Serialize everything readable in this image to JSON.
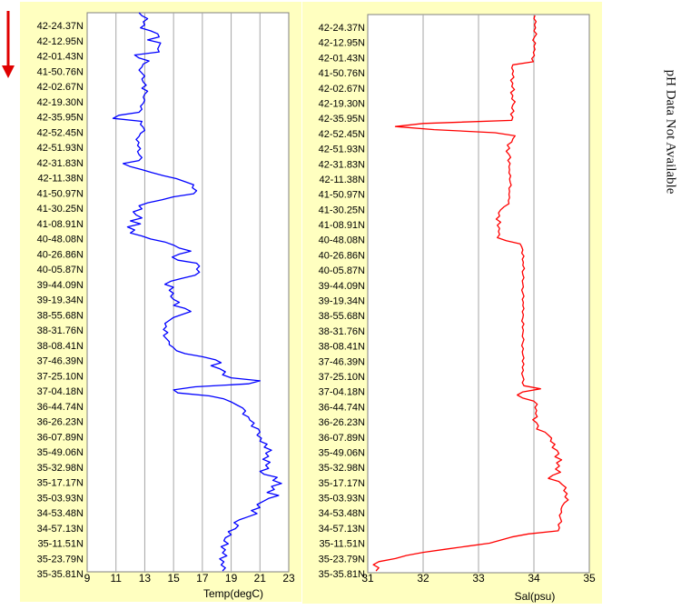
{
  "direction_arrow_icon": "arrow-down-icon",
  "side_note": "pH Data Not Available",
  "colors": {
    "panel_bg": "#FFFFC0",
    "plot_bg": "#FFFFFF",
    "temp_line": "#0000FF",
    "sal_line": "#FF0000",
    "arrow": "#E00000",
    "grid": "#A6A6A6"
  },
  "latitude_labels": [
    "42-24.37N",
    "42-12.95N",
    "42-01.43N",
    "41-50.76N",
    "42-02.67N",
    "42-19.30N",
    "42-35.95N",
    "42-52.45N",
    "42-51.93N",
    "42-31.83N",
    "42-11.38N",
    "41-50.97N",
    "41-30.25N",
    "41-08.91N",
    "40-48.08N",
    "40-26.86N",
    "40-05.87N",
    "39-44.09N",
    "39-19.34N",
    "38-55.68N",
    "38-31.76N",
    "38-08.41N",
    "37-46.39N",
    "37-25.10N",
    "37-04.18N",
    "36-44.74N",
    "36-26.23N",
    "36-07.89N",
    "35-49.06N",
    "35-32.98N",
    "35-17.17N",
    "35-03.93N",
    "34-53.48N",
    "34-57.13N",
    "35-11.51N",
    "35-23.79N",
    "35-35.81N"
  ],
  "chart_data": [
    {
      "type": "line",
      "orientation": "vertical-profile",
      "xlabel": "Temp(degC)",
      "xlim": [
        9,
        23
      ],
      "x_ticks": [
        9,
        11,
        13,
        15,
        17,
        19,
        21,
        23
      ],
      "grid": true,
      "series": [
        {
          "values": [
            12.6,
            12.8,
            13.2,
            12.9,
            13.0,
            12.7,
            13.4,
            13.9,
            14.0,
            13.2,
            14.1,
            14.0,
            13.9,
            14.0,
            12.3,
            12.6,
            13.3,
            12.9,
            12.8,
            12.6,
            12.8,
            13.0,
            12.8,
            12.9,
            13.1,
            12.8,
            13.2,
            13.0,
            12.9,
            13.0,
            12.9,
            12.7,
            12.8,
            12.6,
            11.2,
            10.8,
            12.8,
            12.7,
            12.9,
            13.0,
            12.7,
            12.6,
            12.4,
            12.6,
            12.5,
            12.7,
            12.5,
            12.6,
            12.8,
            12.6,
            11.5,
            12.0,
            12.8,
            13.5,
            14.3,
            15.2,
            15.8,
            16.4,
            16.3,
            16.6,
            16.4,
            15.0,
            14.2,
            13.2,
            12.6,
            12.8,
            12.2,
            12.4,
            12.8,
            12.0,
            12.7,
            11.8,
            12.3,
            12.0,
            12.8,
            13.4,
            14.4,
            15.0,
            15.4,
            16.2,
            15.4,
            14.9,
            15.3,
            16.6,
            16.8,
            16.6,
            16.8,
            16.5,
            15.6,
            14.8,
            14.4,
            15.0,
            14.7,
            15.0,
            14.8,
            15.0,
            15.4,
            15.0,
            15.8,
            16.2,
            15.6,
            15.0,
            14.7,
            14.4,
            14.5,
            14.3,
            14.6,
            14.3,
            14.5,
            14.7,
            14.7,
            15.0,
            15.2,
            15.8,
            17.0,
            17.9,
            18.3,
            17.6,
            18.2,
            18.6,
            18.4,
            19.0,
            21.0,
            20.2,
            16.5,
            15.0,
            15.3,
            17.5,
            18.5,
            19.0,
            19.4,
            19.8,
            20.0,
            19.8,
            20.2,
            20.3,
            20.6,
            20.4,
            20.9,
            21.0,
            20.8,
            21.1,
            21.0,
            21.5,
            21.3,
            21.8,
            21.4,
            21.6,
            21.2,
            21.7,
            21.4,
            21.6,
            21.0,
            21.3,
            22.2,
            21.9,
            22.5,
            21.8,
            22.0,
            21.5,
            22.3,
            21.6,
            21.2,
            20.8,
            21.0,
            20.4,
            20.8,
            20.2,
            19.6,
            19.2,
            19.5,
            19.3,
            18.8,
            19.0,
            18.6,
            18.5,
            18.8,
            18.3,
            18.6,
            18.4,
            18.7,
            18.2,
            18.5,
            18.3,
            18.6,
            18.4
          ]
        }
      ]
    },
    {
      "type": "line",
      "orientation": "vertical-profile",
      "xlabel": "Sal(psu)",
      "xlim": [
        31,
        35
      ],
      "x_ticks": [
        31,
        32,
        33,
        34,
        35
      ],
      "grid": true,
      "series": [
        {
          "values": [
            34.02,
            34.0,
            34.04,
            34.01,
            34.03,
            34.0,
            34.05,
            34.01,
            33.98,
            34.03,
            34.0,
            34.02,
            33.99,
            34.01,
            33.96,
            33.99,
            33.62,
            33.6,
            33.63,
            33.61,
            33.64,
            33.58,
            33.62,
            33.6,
            33.65,
            33.58,
            33.62,
            33.6,
            33.66,
            33.62,
            33.6,
            33.64,
            33.58,
            33.62,
            33.6,
            32.0,
            31.5,
            32.2,
            33.3,
            33.66,
            33.62,
            33.6,
            33.52,
            33.56,
            33.5,
            33.55,
            33.58,
            33.53,
            33.57,
            33.55,
            33.56,
            33.55,
            33.58,
            33.56,
            33.57,
            33.59,
            33.55,
            33.56,
            33.55,
            33.56,
            33.54,
            33.55,
            33.46,
            33.4,
            33.36,
            33.38,
            33.32,
            33.4,
            33.34,
            33.38,
            33.36,
            33.38,
            33.34,
            33.5,
            33.75,
            33.78,
            33.8,
            33.78,
            33.82,
            33.79,
            33.81,
            33.8,
            33.83,
            33.79,
            33.8,
            33.82,
            33.79,
            33.8,
            33.81,
            33.78,
            33.8,
            33.82,
            33.79,
            33.81,
            33.8,
            33.82,
            33.79,
            33.81,
            33.8,
            33.78,
            33.82,
            33.79,
            33.81,
            33.8,
            33.79,
            33.82,
            33.8,
            33.78,
            33.81,
            33.79,
            33.8,
            33.82,
            33.79,
            33.82,
            33.79,
            33.81,
            33.78,
            33.8,
            33.82,
            33.79,
            33.82,
            34.12,
            33.8,
            33.7,
            33.8,
            34.0,
            34.06,
            34.02,
            34.05,
            34.03,
            34.06,
            33.98,
            34.05,
            34.08,
            34.05,
            34.2,
            34.26,
            34.32,
            34.3,
            34.38,
            34.33,
            34.42,
            34.45,
            34.38,
            34.5,
            34.41,
            34.46,
            34.39,
            34.48,
            34.34,
            34.26,
            34.45,
            34.51,
            34.58,
            34.54,
            34.6,
            34.56,
            34.62,
            34.55,
            34.51,
            34.49,
            34.5,
            34.46,
            34.48,
            34.5,
            34.44,
            34.46,
            34.44,
            33.9,
            33.6,
            33.4,
            33.2,
            32.8,
            32.4,
            32.0,
            31.7,
            31.5,
            31.2,
            31.1,
            31.2,
            31.15
          ]
        }
      ]
    }
  ]
}
